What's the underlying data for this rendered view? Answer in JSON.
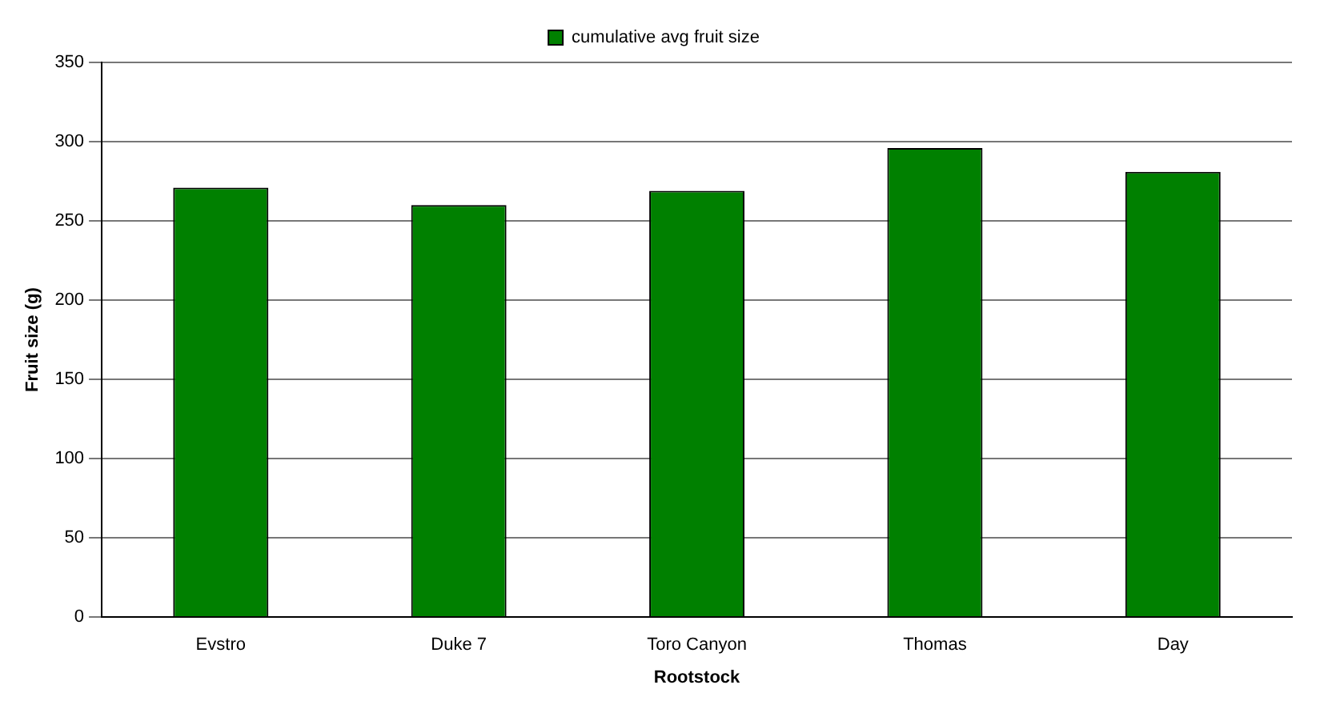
{
  "chart_data": {
    "type": "bar",
    "xlabel": "Rootstock",
    "ylabel": "Fruit size (g)",
    "categories": [
      "Evstro",
      "Duke 7",
      "Toro Canyon",
      "Thomas",
      "Day"
    ],
    "series": [
      {
        "name": "cumulative avg fruit size",
        "color": "#008000",
        "values": [
          271,
          260,
          269,
          296,
          281
        ]
      }
    ],
    "ylim": [
      0,
      350
    ],
    "yticks": [
      0,
      50,
      100,
      150,
      200,
      250,
      300,
      350
    ],
    "grid": "y",
    "legend": "top"
  }
}
